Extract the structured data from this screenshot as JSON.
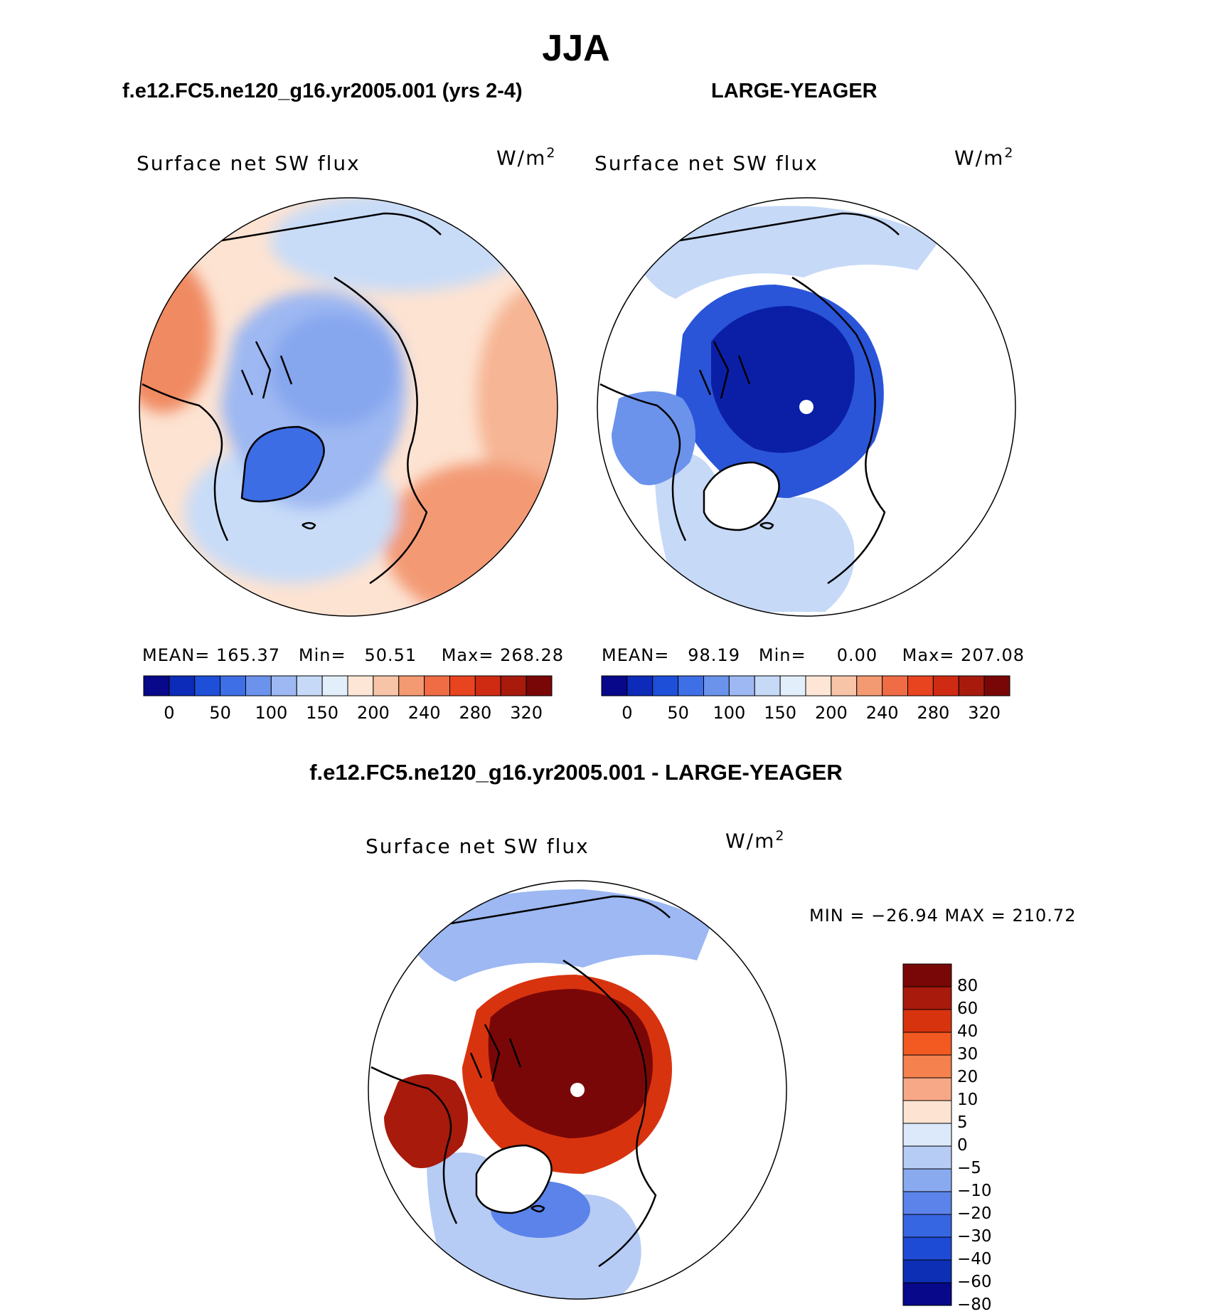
{
  "title": "JJA",
  "panels": [
    {
      "subtitle": "f.e12.FC5.ne120_g16.yr2005.001 (yrs 2-4)",
      "variable": "Surface net SW flux",
      "units": "W/m",
      "units_sup": "2",
      "stats": {
        "mean_label": "MEAN=",
        "mean": "165.37",
        "min_label": "Min=",
        "min": "50.51",
        "max_label": "Max=",
        "max": "268.28"
      }
    },
    {
      "subtitle": "LARGE-YEAGER",
      "variable": "Surface net SW flux",
      "units": "W/m",
      "units_sup": "2",
      "stats": {
        "mean_label": "MEAN=",
        "mean": "98.19",
        "min_label": "Min=",
        "min": "0.00",
        "max_label": "Max=",
        "max": "207.08"
      }
    },
    {
      "subtitle": "f.e12.FC5.ne120_g16.yr2005.001 - LARGE-YEAGER",
      "variable": "Surface net SW flux",
      "units": "W/m",
      "units_sup": "2",
      "stats": {
        "minmax": "MIN = −26.94 MAX = 210.72"
      }
    }
  ],
  "colorbar_main": {
    "colors": [
      "#08088a",
      "#0b2bb8",
      "#1d4fd9",
      "#3f6fe6",
      "#6b93ec",
      "#9db8f2",
      "#c6d9f7",
      "#e3eefb",
      "#fde6d6",
      "#f8c4a7",
      "#f49a73",
      "#f06c45",
      "#e84420",
      "#cf2b12",
      "#a81a0c",
      "#7a0707"
    ],
    "ticks": [
      "0",
      "50",
      "100",
      "150",
      "200",
      "240",
      "280",
      "320"
    ]
  },
  "colorbar_diff": {
    "colors": [
      "#7a0707",
      "#a81a0c",
      "#d8330f",
      "#f25a21",
      "#f4814e",
      "#f7a886",
      "#fde3d2",
      "#dbe9fa",
      "#b6ccf5",
      "#8aaaf0",
      "#5b83ea",
      "#3766e2",
      "#1e4bd6",
      "#0d2fb5",
      "#08088a"
    ],
    "ticks": [
      "80",
      "60",
      "40",
      "30",
      "20",
      "10",
      "5",
      "0",
      "−5",
      "−10",
      "−20",
      "−30",
      "−40",
      "−60",
      "−80"
    ]
  },
  "chart_data": [
    {
      "type": "heatmap",
      "projection": "north polar stereographic",
      "title": "f.e12.FC5.ne120_g16.yr2005.001 (yrs 2-4)",
      "variable": "Surface net SW flux",
      "units": "W/m2",
      "contour_levels": [
        0,
        25,
        50,
        75,
        100,
        125,
        150,
        175,
        200,
        220,
        240,
        260,
        280,
        300,
        320
      ],
      "mean": 165.37,
      "min": 50.51,
      "max": 268.28
    },
    {
      "type": "heatmap",
      "projection": "north polar stereographic",
      "title": "LARGE-YEAGER",
      "variable": "Surface net SW flux",
      "units": "W/m2",
      "contour_levels": [
        0,
        25,
        50,
        75,
        100,
        125,
        150,
        175,
        200,
        220,
        240,
        260,
        280,
        300,
        320
      ],
      "mean": 98.19,
      "min": 0.0,
      "max": 207.08
    },
    {
      "type": "heatmap",
      "projection": "north polar stereographic",
      "title": "f.e12.FC5.ne120_g16.yr2005.001 - LARGE-YEAGER",
      "variable": "Surface net SW flux",
      "units": "W/m2",
      "contour_levels": [
        -80,
        -60,
        -40,
        -30,
        -20,
        -10,
        -5,
        0,
        5,
        10,
        20,
        30,
        40,
        60,
        80
      ],
      "min": -26.94,
      "max": 210.72
    }
  ]
}
